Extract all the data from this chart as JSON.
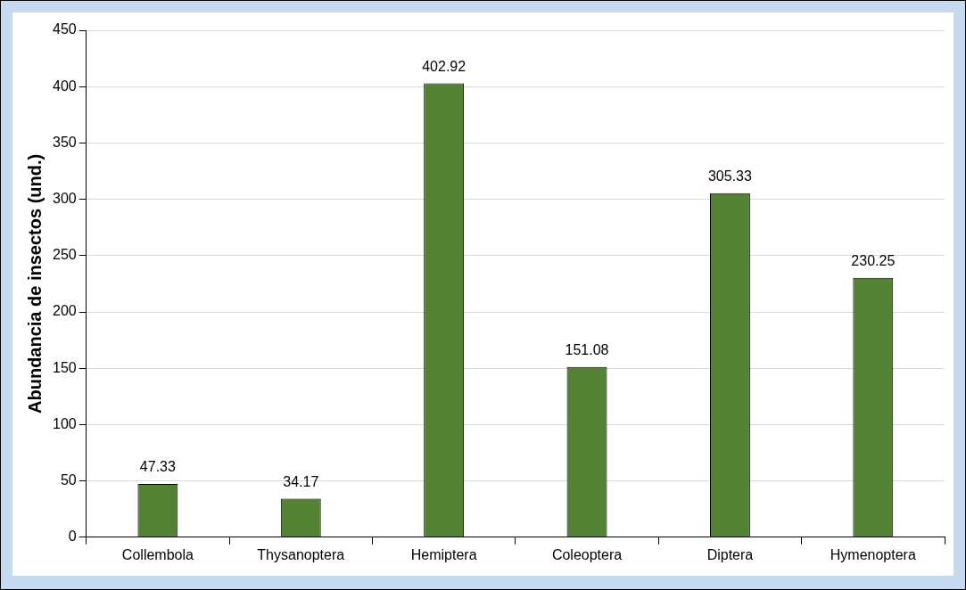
{
  "chart_data": {
    "type": "bar",
    "ylabel": "Abundancia de insectos (und.)",
    "categories": [
      "Collembola",
      "Thysanoptera",
      "Hemiptera",
      "Coleoptera",
      "Diptera",
      "Hymenoptera"
    ],
    "values": [
      47.33,
      34.17,
      402.92,
      151.08,
      305.33,
      230.25
    ],
    "color": "#548235",
    "ylim": [
      0,
      450
    ],
    "yticks": [
      0,
      50,
      100,
      150,
      200,
      250,
      300,
      350,
      400,
      450
    ],
    "grid": "y",
    "data_labels": true,
    "legend": false
  }
}
